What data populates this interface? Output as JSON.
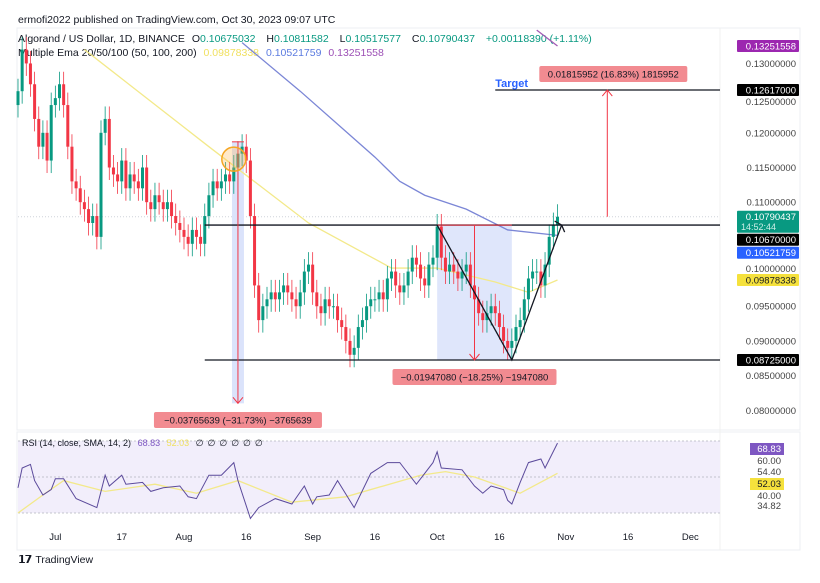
{
  "header": {
    "publisher": "ermofi2022 published on TradingView.com, Oct 30, 2023 09:07 UTC",
    "symbol": "Algorand / US Dollar, 1D, BINANCE",
    "ohlc": {
      "o_label": "O",
      "o": "0.10675032",
      "h_label": "H",
      "h": "0.10811582",
      "l_label": "L",
      "l": "0.10517577",
      "c_label": "C",
      "c": "0.10790437",
      "change": "+0.00118390 (+1.11%)"
    },
    "ema": {
      "name": "Multiple Ema 20/50/100 (50, 100, 200)",
      "v1": "0.09878338",
      "v2": "0.10521759",
      "v3": "0.13251558"
    }
  },
  "colors": {
    "up": "#089981",
    "down": "#f23645",
    "ema50": "#f3e98a",
    "ema100": "#7b86d6",
    "ema200": "#a25ab5",
    "rsi": "#7e57c2",
    "rsi_sma": "#f3e98a",
    "measure": "#f28b91",
    "measure_fill": "#dbe3fb"
  },
  "chart_data": [
    {
      "type": "candlestick",
      "start_date": "2023-06-22",
      "closes": [
        0.126,
        0.132,
        0.13,
        0.127,
        0.122,
        0.118,
        0.12,
        0.116,
        0.124,
        0.125,
        0.127,
        0.124,
        0.118,
        0.113,
        0.112,
        0.11,
        0.109,
        0.107,
        0.108,
        0.105,
        0.12,
        0.122,
        0.115,
        0.114,
        0.113,
        0.116,
        0.112,
        0.114,
        0.113,
        0.112,
        0.115,
        0.11,
        0.109,
        0.111,
        0.11,
        0.109,
        0.11,
        0.108,
        0.107,
        0.106,
        0.105,
        0.104,
        0.106,
        0.105,
        0.104,
        0.108,
        0.111,
        0.113,
        0.112,
        0.113,
        0.114,
        0.113,
        0.115,
        0.117,
        0.118,
        0.116,
        0.108,
        0.098,
        0.093,
        0.095,
        0.096,
        0.097,
        0.096,
        0.097,
        0.098,
        0.097,
        0.096,
        0.095,
        0.097,
        0.1,
        0.101,
        0.097,
        0.095,
        0.094,
        0.096,
        0.095,
        0.095,
        0.093,
        0.092,
        0.09,
        0.088,
        0.089,
        0.092,
        0.093,
        0.095,
        0.096,
        0.096,
        0.097,
        0.096,
        0.099,
        0.1,
        0.098,
        0.097,
        0.098,
        0.1,
        0.102,
        0.101,
        0.099,
        0.098,
        0.101,
        0.102,
        0.1065,
        0.102,
        0.1,
        0.101,
        0.1,
        0.099,
        0.1,
        0.101,
        0.098,
        0.096,
        0.094,
        0.093,
        0.094,
        0.095,
        0.094,
        0.092,
        0.09,
        0.089,
        0.09,
        0.092,
        0.093,
        0.096,
        0.099,
        0.1,
        0.1,
        0.098,
        0.101,
        0.105,
        0.1067,
        0.1079
      ],
      "ema": [
        {
          "name": "EMA 50",
          "points": [
            [
              "2023-07-08",
              0.132
            ],
            [
              "2023-08-07",
              0.118
            ],
            [
              "2023-08-31",
              0.107
            ],
            [
              "2023-09-20",
              0.1005
            ],
            [
              "2023-10-01",
              0.1005
            ],
            [
              "2023-10-15",
              0.0985
            ],
            [
              "2023-10-23",
              0.097
            ],
            [
              "2023-10-30",
              0.09878
            ]
          ]
        },
        {
          "name": "EMA 100",
          "points": [
            [
              "2023-08-15",
              0.133
            ],
            [
              "2023-08-29",
              0.126
            ],
            [
              "2023-09-16",
              0.1165
            ],
            [
              "2023-09-22",
              0.113
            ],
            [
              "2023-09-28",
              0.111
            ],
            [
              "2023-10-08",
              0.109
            ],
            [
              "2023-10-18",
              0.106
            ],
            [
              "2023-10-30",
              0.10522
            ]
          ]
        },
        {
          "name": "EMA 200",
          "points": [
            [
              "2023-10-25",
              0.1348
            ],
            [
              "2023-10-30",
              0.13252
            ]
          ]
        }
      ],
      "price_ticks": [
        "0.13000000",
        "0.12500000",
        "0.12000000",
        "0.11500000",
        "0.11000000",
        "0.10000000",
        "0.09500000",
        "0.09000000",
        "0.08500000",
        "0.08000000"
      ],
      "price_badges": [
        {
          "value": "0.13251558",
          "color": "#9c27b0",
          "text_color": "#ffffff"
        },
        {
          "value": "0.12617000",
          "color": "#000000",
          "text_color": "#ffffff"
        },
        {
          "value": "0.10790437",
          "sub": "14:52:44",
          "color": "#089981",
          "text_color": "#ffffff"
        },
        {
          "value": "0.10670000",
          "color": "#000000",
          "text_color": "#ffffff"
        },
        {
          "value": "0.10521759",
          "color": "#2962ff",
          "text_color": "#ffffff"
        },
        {
          "value": "0.09878338",
          "color": "#f5e13c",
          "text_color": "#131722"
        },
        {
          "value": "0.08725000",
          "color": "#000000",
          "text_color": "#ffffff"
        }
      ],
      "time_ticks": [
        [
          "Jul",
          "2023-07-01"
        ],
        [
          "17",
          "2023-07-17"
        ],
        [
          "Aug",
          "2023-08-01"
        ],
        [
          "16",
          "2023-08-16"
        ],
        [
          "Sep",
          "2023-09-01"
        ],
        [
          "16",
          "2023-09-16"
        ],
        [
          "Oct",
          "2023-10-01"
        ],
        [
          "16",
          "2023-10-16"
        ],
        [
          "Nov",
          "2023-11-01"
        ],
        [
          "16",
          "2023-11-16"
        ],
        [
          "Dec",
          "2023-12-01"
        ]
      ],
      "drawings": {
        "resistance": {
          "price": 0.1067,
          "from": "2023-08-06"
        },
        "support": {
          "price": 0.08725,
          "from": "2023-08-06"
        },
        "target": {
          "price": 0.12617,
          "from": "2023-10-15",
          "label": "Target"
        },
        "measures": [
          {
            "date": "2023-08-14",
            "from": 0.1187,
            "to": 0.081,
            "label": "−0.03765639 (−31.73%) −3765639"
          },
          {
            "date_from": "2023-10-01",
            "date_to": "2023-10-19",
            "from": 0.1067,
            "to": 0.08725,
            "label": "−0.01947080 (−18.25%) −1947080"
          },
          {
            "date": "2023-11-11",
            "from": 0.1079,
            "to": 0.12617,
            "label": "0.01815952 (16.83%) 1815952"
          }
        ],
        "v_pattern": [
          [
            "2023-10-01",
            0.1067
          ],
          [
            "2023-10-19",
            0.08725
          ],
          [
            "2023-10-31",
            0.1067
          ]
        ],
        "circle": {
          "date": "2023-08-13",
          "price": 0.1162
        }
      }
    },
    {
      "type": "line",
      "title": "RSI (14, close, SMA, 14, 2)",
      "rsi_value": "68.83",
      "sma_value": "52.03",
      "na_markers": [
        "∅",
        "∅",
        "∅",
        "∅",
        "∅",
        "∅"
      ],
      "bands": [
        30,
        70
      ],
      "axis_labels": [
        "68.83",
        "60.00",
        "54.40",
        "52.03",
        "40.00",
        "34.82"
      ],
      "rsi": [
        [
          "2023-06-22",
          44
        ],
        [
          "2023-06-23",
          55
        ],
        [
          "2023-06-25",
          57
        ],
        [
          "2023-06-26",
          48
        ],
        [
          "2023-06-28",
          40
        ],
        [
          "2023-06-30",
          43
        ],
        [
          "2023-07-01",
          49
        ],
        [
          "2023-07-03",
          49
        ],
        [
          "2023-07-06",
          38
        ],
        [
          "2023-07-11",
          33
        ],
        [
          "2023-07-13",
          51
        ],
        [
          "2023-07-14",
          45
        ],
        [
          "2023-07-17",
          51
        ],
        [
          "2023-07-18",
          46
        ],
        [
          "2023-07-22",
          47
        ],
        [
          "2023-07-24",
          42
        ],
        [
          "2023-07-27",
          44
        ],
        [
          "2023-07-31",
          45
        ],
        [
          "2023-08-02",
          39
        ],
        [
          "2023-08-04",
          38
        ],
        [
          "2023-08-07",
          51
        ],
        [
          "2023-08-10",
          51
        ],
        [
          "2023-08-13",
          58
        ],
        [
          "2023-08-14",
          48
        ],
        [
          "2023-08-17",
          27
        ],
        [
          "2023-08-19",
          33
        ],
        [
          "2023-08-23",
          38
        ],
        [
          "2023-08-27",
          35
        ],
        [
          "2023-08-30",
          45
        ],
        [
          "2023-09-01",
          35
        ],
        [
          "2023-09-02",
          39
        ],
        [
          "2023-09-05",
          40
        ],
        [
          "2023-09-07",
          48
        ],
        [
          "2023-09-11",
          33
        ],
        [
          "2023-09-15",
          52
        ],
        [
          "2023-09-19",
          58
        ],
        [
          "2023-09-22",
          58
        ],
        [
          "2023-09-23",
          55
        ],
        [
          "2023-09-26",
          46
        ],
        [
          "2023-09-30",
          58
        ],
        [
          "2023-10-01",
          64
        ],
        [
          "2023-10-02",
          55
        ],
        [
          "2023-10-07",
          54
        ],
        [
          "2023-10-10",
          45
        ],
        [
          "2023-10-12",
          41
        ],
        [
          "2023-10-14",
          45
        ],
        [
          "2023-10-17",
          43
        ],
        [
          "2023-10-18",
          37
        ],
        [
          "2023-10-19",
          35
        ],
        [
          "2023-10-21",
          47
        ],
        [
          "2023-10-23",
          58
        ],
        [
          "2023-10-26",
          60
        ],
        [
          "2023-10-27",
          55
        ],
        [
          "2023-10-30",
          68.83
        ]
      ],
      "sma": [
        [
          "2023-06-22",
          30
        ],
        [
          "2023-06-28",
          40
        ],
        [
          "2023-07-03",
          48
        ],
        [
          "2023-07-13",
          42
        ],
        [
          "2023-07-25",
          46
        ],
        [
          "2023-08-04",
          41
        ],
        [
          "2023-08-14",
          48
        ],
        [
          "2023-08-27",
          36
        ],
        [
          "2023-09-09",
          39
        ],
        [
          "2023-09-27",
          51
        ],
        [
          "2023-10-03",
          53
        ],
        [
          "2023-10-10",
          50
        ],
        [
          "2023-10-21",
          41
        ],
        [
          "2023-10-30",
          52.03
        ]
      ]
    }
  ],
  "footer": {
    "brand": "TradingView",
    "logo": "17"
  }
}
